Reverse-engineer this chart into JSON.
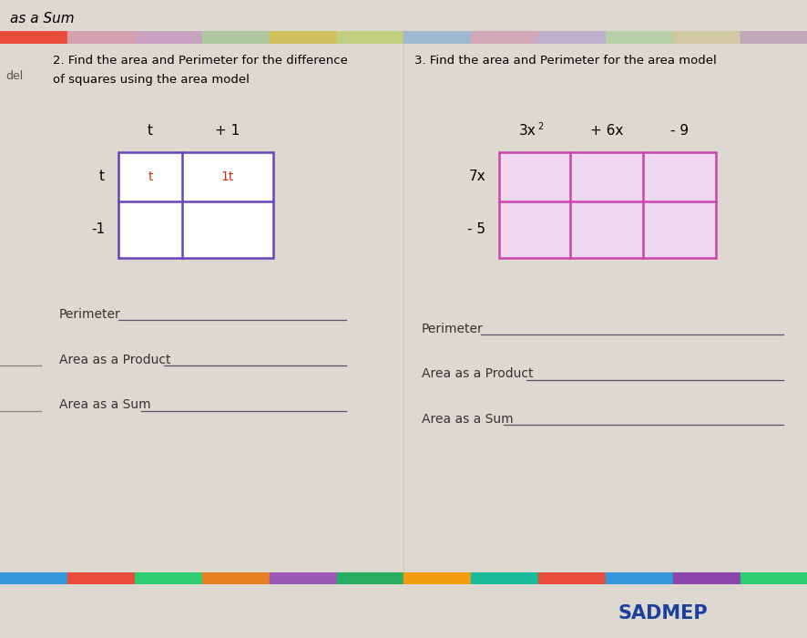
{
  "bg_color": "#ddd8d0",
  "header_bar_color": "#5ecec8",
  "header_text": "as a Sum",
  "footer_bar_color": "#5ecec8",
  "footer_text": "SADMEP",
  "footer_text_color": "#1a3fa0",
  "colorful_strip_colors": [
    "#e74c3c",
    "#d4a0b0",
    "#c8a0c0",
    "#b0c8a0",
    "#d0c060",
    "#c0d080",
    "#a0b8d0",
    "#d0a8b8",
    "#c0b0d0",
    "#b8d0a8",
    "#d0c8a0",
    "#c0a8b8"
  ],
  "colorful_strip_colors2": [
    "#3498db",
    "#e74c3c",
    "#2ecc71",
    "#e67e22",
    "#9b59b6",
    "#27ae60",
    "#f39c12",
    "#1abc9c",
    "#e74c3c",
    "#3498db",
    "#8e44ad",
    "#2ecc71"
  ],
  "left_panel_title_line1": "2. Find the area and Perimeter for the difference",
  "left_panel_title_line2": "of squares using the area model",
  "right_panel_title": "3. Find the area and Perimeter for the area model",
  "left_col_headers": [
    "t",
    "+ 1"
  ],
  "left_row_headers": [
    "t",
    "-1"
  ],
  "left_cell_label_0_0": "t",
  "left_cell_label_0_1": "1t",
  "left_box_color": "#6644bb",
  "right_col_header_3x": "3x",
  "right_col_header_sup": "2",
  "right_col_header_6x": "+ 6x",
  "right_col_header_9": "- 9",
  "right_row_headers": [
    "7x",
    "- 5"
  ],
  "right_box_color": "#cc44aa",
  "right_fill_color": "#f0d8f0",
  "left_fields": [
    "Perimeter",
    "Area as a Product",
    "Area as a Sum"
  ],
  "right_fields": [
    "Perimeter",
    "Area as a Product",
    "Area as a Sum"
  ],
  "field_line_color": "#555566",
  "field_text_color": "#333333",
  "del_label": "del",
  "panel_divider_color": "#cccccc",
  "short_line_color": "#888888"
}
